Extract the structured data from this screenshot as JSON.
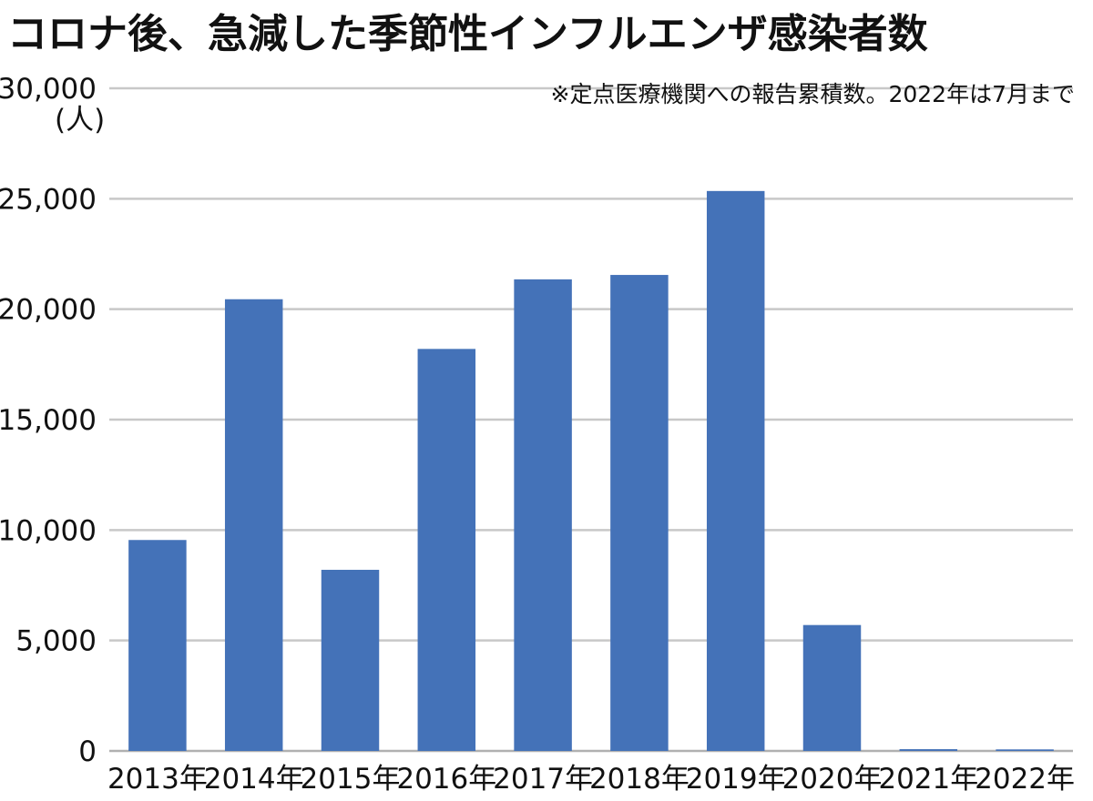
{
  "chart_data": {
    "type": "bar",
    "title": "コロナ後、急減した季節性インフルエンザ感染者数",
    "note": "※定点医療機関への報告累積数。2022年は7月まで",
    "ylabel": "(人)",
    "categories": [
      "2013年",
      "2014年",
      "2015年",
      "2016年",
      "2017年",
      "2018年",
      "2019年",
      "2020年",
      "2021年",
      "2022年"
    ],
    "series": [
      {
        "values": [
          9550,
          20450,
          8200,
          18200,
          21350,
          21550,
          25350,
          5700,
          80,
          70
        ],
        "color": "#4472b8"
      }
    ],
    "ylim": [
      0,
      30000
    ],
    "yticks": [
      0,
      5000,
      10000,
      15000,
      20000,
      25000,
      30000
    ],
    "ytick_labels": [
      "0",
      "5,000",
      "10,000",
      "15,000",
      "20,000",
      "25,000",
      "30,000"
    ],
    "grid": true,
    "legend": "none"
  }
}
